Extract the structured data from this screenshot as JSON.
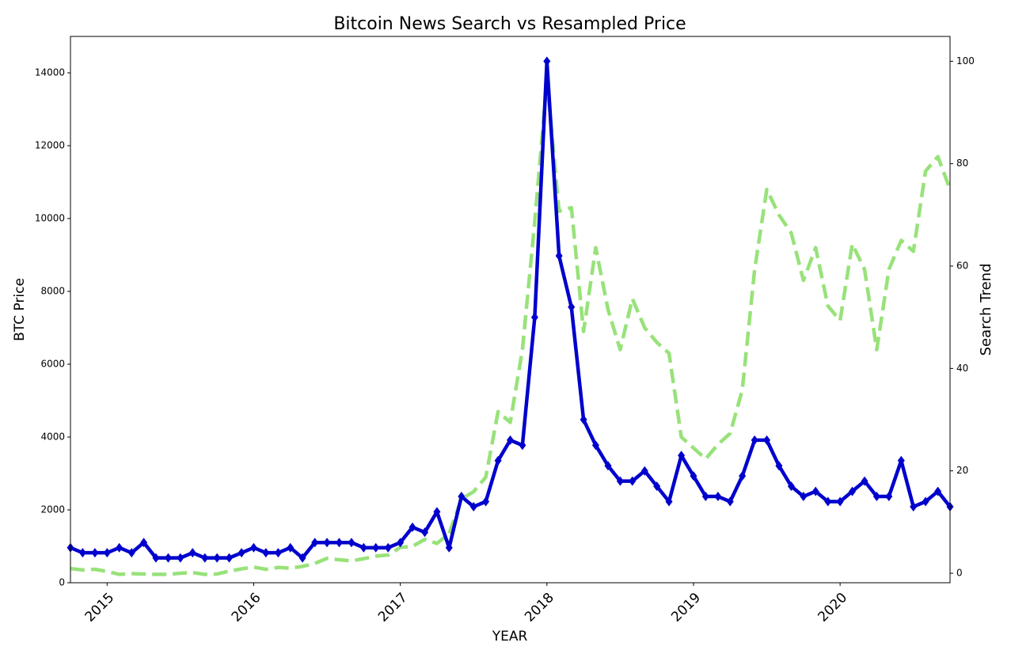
{
  "chart_data": {
    "type": "line",
    "title": "Bitcoin News Search vs Resampled Price",
    "x_label": "YEAR",
    "x_label_color": "#00e5ff",
    "y_label": "BTC Price",
    "y_label_color": "#98e27a",
    "y2_label": "Search Trend",
    "y2_label_color": "#0000cd",
    "x": [
      2014.75,
      2014.833,
      2014.917,
      2015,
      2015.083,
      2015.167,
      2015.25,
      2015.333,
      2015.417,
      2015.5,
      2015.583,
      2015.667,
      2015.75,
      2015.833,
      2015.917,
      2016,
      2016.083,
      2016.167,
      2016.25,
      2016.333,
      2016.417,
      2016.5,
      2016.583,
      2016.667,
      2016.75,
      2016.833,
      2016.917,
      2017,
      2017.083,
      2017.167,
      2017.25,
      2017.333,
      2017.417,
      2017.5,
      2017.583,
      2017.667,
      2017.75,
      2017.833,
      2017.917,
      2018,
      2018.083,
      2018.167,
      2018.25,
      2018.333,
      2018.417,
      2018.5,
      2018.583,
      2018.667,
      2018.75,
      2018.833,
      2018.917,
      2019,
      2019.083,
      2019.167,
      2019.25,
      2019.333,
      2019.417,
      2019.5,
      2019.583,
      2019.667,
      2019.75,
      2019.833,
      2019.917,
      2020,
      2020.083,
      2020.167,
      2020.25,
      2020.333,
      2020.417,
      2020.5,
      2020.583,
      2020.667,
      2020.75
    ],
    "series": [
      {
        "name": "BTC Price",
        "color": "#98e27a",
        "dash": true,
        "axis": "y",
        "values": [
          390,
          350,
          370,
          310,
          230,
          250,
          240,
          230,
          230,
          260,
          280,
          230,
          240,
          320,
          380,
          430,
          370,
          420,
          400,
          450,
          530,
          670,
          630,
          600,
          660,
          730,
          760,
          970,
          1000,
          1190,
          1080,
          1350,
          2300,
          2500,
          2900,
          4700,
          4400,
          6400,
          9900,
          13800,
          10200,
          10300,
          6900,
          9200,
          7500,
          6400,
          7800,
          7000,
          6600,
          6300,
          4000,
          3700,
          3400,
          3800,
          4100,
          5300,
          8600,
          10800,
          10100,
          9600,
          8300,
          9200,
          7600,
          7200,
          9300,
          8600,
          6400,
          8600,
          9400,
          9100,
          11300,
          11700,
          10800
        ]
      },
      {
        "name": "Search Trend",
        "color": "#0000cd",
        "markers": true,
        "axis": "y2",
        "values": [
          5,
          4,
          4,
          4,
          5,
          4,
          6,
          3,
          3,
          3,
          4,
          3,
          3,
          3,
          4,
          5,
          4,
          4,
          5,
          3,
          6,
          6,
          6,
          6,
          5,
          5,
          5,
          6,
          9,
          8,
          12,
          5,
          15,
          13,
          14,
          22,
          26,
          25,
          50,
          100,
          62,
          52,
          30,
          25,
          21,
          18,
          18,
          20,
          17,
          14,
          23,
          19,
          15,
          15,
          14,
          19,
          26,
          26,
          21,
          17,
          15,
          16,
          14,
          14,
          16,
          18,
          15,
          15,
          22,
          13,
          14,
          16,
          13
        ]
      }
    ],
    "xlim": [
      2014.75,
      2020.75
    ],
    "xticks": [
      2015,
      2016,
      2017,
      2018,
      2019,
      2020
    ],
    "ylim": [
      0,
      15000
    ],
    "yticks": [
      0,
      2000,
      4000,
      6000,
      8000,
      10000,
      12000,
      14000
    ],
    "y2lim": [
      -1.85,
      104.85
    ],
    "y2ticks": [
      0,
      20,
      40,
      60,
      80,
      100
    ]
  }
}
